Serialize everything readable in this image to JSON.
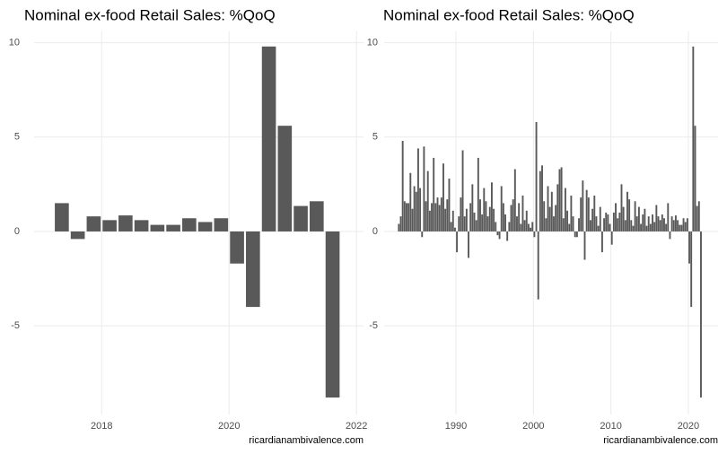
{
  "chart_data": [
    {
      "type": "bar",
      "title": "Nominal ex-food Retail Sales: %QoQ",
      "caption": "ricardianambivalence.com",
      "color": "#595959",
      "grid": true,
      "x": [
        2017.375,
        2017.625,
        2017.875,
        2018.125,
        2018.375,
        2018.625,
        2018.875,
        2019.125,
        2019.375,
        2019.625,
        2019.875,
        2020.125,
        2020.375,
        2020.625,
        2020.875,
        2021.125,
        2021.375,
        2021.625
      ],
      "values": [
        1.5,
        -0.4,
        0.8,
        0.6,
        0.85,
        0.6,
        0.35,
        0.35,
        0.7,
        0.5,
        0.7,
        -1.7,
        -4.0,
        9.8,
        5.6,
        1.35,
        1.6,
        -8.8
      ],
      "xlim": [
        2016.94,
        2022.11
      ],
      "xticks": [
        2018,
        2020,
        2022
      ],
      "ylim": [
        -9.7,
        10.6
      ],
      "yticks": [
        -5,
        0,
        5,
        10
      ]
    },
    {
      "type": "bar",
      "title": "Nominal ex-food Retail Sales: %QoQ",
      "caption": "ricardianambivalence.com",
      "color": "#595959",
      "grid": true,
      "x": [
        1982.625,
        1982.875,
        1983.125,
        1983.375,
        1983.625,
        1983.875,
        1984.125,
        1984.375,
        1984.625,
        1984.875,
        1985.125,
        1985.375,
        1985.625,
        1985.875,
        1986.125,
        1986.375,
        1986.625,
        1986.875,
        1987.125,
        1987.375,
        1987.625,
        1987.875,
        1988.125,
        1988.375,
        1988.625,
        1988.875,
        1989.125,
        1989.375,
        1989.625,
        1989.875,
        1990.125,
        1990.375,
        1990.625,
        1990.875,
        1991.125,
        1991.375,
        1991.625,
        1991.875,
        1992.125,
        1992.375,
        1992.625,
        1992.875,
        1993.125,
        1993.375,
        1993.625,
        1993.875,
        1994.125,
        1994.375,
        1994.625,
        1994.875,
        1995.125,
        1995.375,
        1995.625,
        1995.875,
        1996.125,
        1996.375,
        1996.625,
        1996.875,
        1997.125,
        1997.375,
        1997.625,
        1997.875,
        1998.125,
        1998.375,
        1998.625,
        1998.875,
        1999.125,
        1999.375,
        1999.625,
        1999.875,
        2000.125,
        2000.375,
        2000.625,
        2000.875,
        2001.125,
        2001.375,
        2001.625,
        2001.875,
        2002.125,
        2002.375,
        2002.625,
        2002.875,
        2003.125,
        2003.375,
        2003.625,
        2003.875,
        2004.125,
        2004.375,
        2004.625,
        2004.875,
        2005.125,
        2005.375,
        2005.625,
        2005.875,
        2006.125,
        2006.375,
        2006.625,
        2006.875,
        2007.125,
        2007.375,
        2007.625,
        2007.875,
        2008.125,
        2008.375,
        2008.625,
        2008.875,
        2009.125,
        2009.375,
        2009.625,
        2009.875,
        2010.125,
        2010.375,
        2010.625,
        2010.875,
        2011.125,
        2011.375,
        2011.625,
        2011.875,
        2012.125,
        2012.375,
        2012.625,
        2012.875,
        2013.125,
        2013.375,
        2013.625,
        2013.875,
        2014.125,
        2014.375,
        2014.625,
        2014.875,
        2015.125,
        2015.375,
        2015.625,
        2015.875,
        2016.125,
        2016.375,
        2016.625,
        2016.875,
        2017.125,
        2017.375,
        2017.625,
        2017.875,
        2018.125,
        2018.375,
        2018.625,
        2018.875,
        2019.125,
        2019.375,
        2019.625,
        2019.875,
        2020.125,
        2020.375,
        2020.625,
        2020.875,
        2021.125,
        2021.375,
        2021.625
      ],
      "values": [
        0.4,
        0.8,
        4.8,
        1.6,
        1.5,
        1.5,
        3.1,
        1.2,
        2.4,
        2.1,
        4.4,
        2.3,
        -0.3,
        4.5,
        1.6,
        3.2,
        1.1,
        1.5,
        3.9,
        1.5,
        1.8,
        1.4,
        1.8,
        3.6,
        1.2,
        1.7,
        2.8,
        0.5,
        1.1,
        0.2,
        -1.1,
        0.8,
        1.8,
        4.3,
        0.8,
        1.2,
        -1.4,
        1.5,
        2.5,
        1.0,
        0.6,
        3.9,
        1.7,
        0.9,
        2.3,
        1.6,
        0.8,
        1.3,
        2.6,
        1.2,
        0.5,
        -0.2,
        -0.4,
        2.4,
        1.5,
        0.9,
        -0.5,
        0.5,
        1.4,
        1.7,
        3.3,
        0.8,
        1.5,
        0.4,
        1.9,
        0.6,
        1.1,
        0.4,
        0.2,
        0.5,
        -0.3,
        5.8,
        -3.6,
        3.2,
        3.5,
        1.6,
        0.7,
        2.4,
        1.3,
        2.1,
        0.8,
        1.4,
        2.5,
        3.3,
        3.4,
        0.7,
        2.3,
        1.1,
        0.4,
        1.9,
        0.8,
        -0.3,
        -0.3,
        0.7,
        1.8,
        2.7,
        -1.5,
        2.2,
        1.8,
        0.6,
        1.2,
        1.9,
        0.8,
        0.3,
        1.3,
        -1.1,
        0.7,
        1.0,
        0.9,
        0.4,
        -0.7,
        1.0,
        1.5,
        0.7,
        1.0,
        2.5,
        1.3,
        0.6,
        2.1,
        1.7,
        0.6,
        0.3,
        1.6,
        0.8,
        1.3,
        0.4,
        0.9,
        1.2,
        0.3,
        0.8,
        0.4,
        0.9,
        0.5,
        1.4,
        0.8,
        0.6,
        0.9,
        0.7,
        0.4,
        1.5,
        -0.4,
        0.8,
        0.6,
        0.85,
        0.6,
        0.35,
        0.35,
        0.7,
        0.5,
        0.7,
        -1.7,
        -4.0,
        9.8,
        5.6,
        1.35,
        1.6,
        -8.8
      ],
      "xlim": [
        1980.73,
        2023.83
      ],
      "xticks": [
        1990,
        2000,
        2010,
        2020
      ],
      "ylim": [
        -9.7,
        10.6
      ],
      "yticks": [
        -5,
        0,
        5,
        10
      ]
    }
  ]
}
